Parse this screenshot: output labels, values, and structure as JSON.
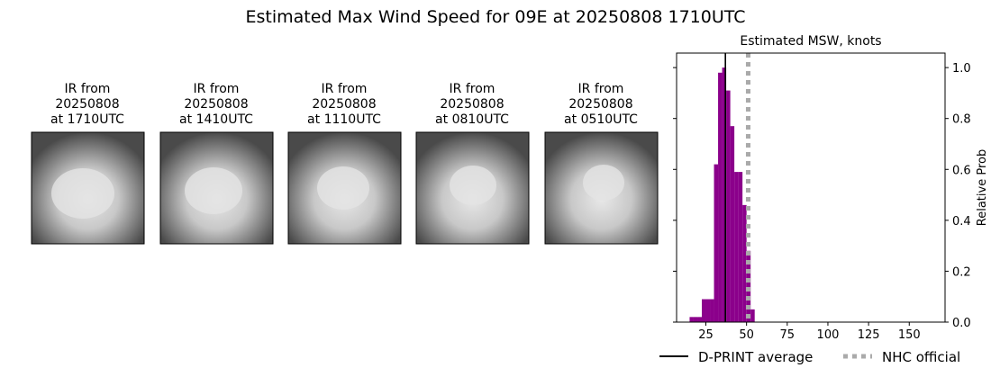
{
  "title": "Estimated Max Wind Speed for 09E at 20250808 1710UTC",
  "images": [
    {
      "label": [
        "IR from",
        "20250808",
        "at 1710UTC"
      ]
    },
    {
      "label": [
        "IR from",
        "20250808",
        "at 1410UTC"
      ]
    },
    {
      "label": [
        "IR from",
        "20250808",
        "at 1110UTC"
      ]
    },
    {
      "label": [
        "IR from",
        "20250808",
        "at 0810UTC"
      ]
    },
    {
      "label": [
        "IR from",
        "20250808",
        "at 0510UTC"
      ]
    }
  ],
  "chart_data": {
    "type": "histogram",
    "title": "Estimated MSW, knots",
    "y_label": "Relative Prob",
    "bins": [
      15,
      17.5,
      20,
      22.5,
      25,
      27.5,
      30,
      32.5,
      35,
      37.5,
      40,
      42.5,
      45,
      47.5,
      50,
      52.5,
      55
    ],
    "values": [
      0.02,
      0.02,
      0.02,
      0.09,
      0.09,
      0.09,
      0.62,
      0.98,
      1.0,
      0.91,
      0.77,
      0.59,
      0.59,
      0.46,
      0.28,
      0.05
    ],
    "color": "#8b008b",
    "xlim": [
      7,
      172
    ],
    "ylim": [
      0,
      1.057
    ],
    "xticks": [
      25,
      50,
      75,
      100,
      125,
      150
    ],
    "yticks": [
      {
        "value": 0,
        "label": "0.0"
      },
      {
        "value": 0.2,
        "label": "0.2"
      },
      {
        "value": 0.4,
        "label": "0.4"
      },
      {
        "value": 0.6,
        "label": "0.6"
      },
      {
        "value": 0.8,
        "label": "0.8"
      },
      {
        "value": 1.0,
        "label": "1.0"
      }
    ],
    "lines": [
      {
        "name": "D-PRINT average",
        "value": 37,
        "color": "#000000",
        "style": "solid"
      },
      {
        "name": "NHC official",
        "value": 51,
        "color": "#aaaaaa",
        "style": "dotted"
      }
    ]
  }
}
